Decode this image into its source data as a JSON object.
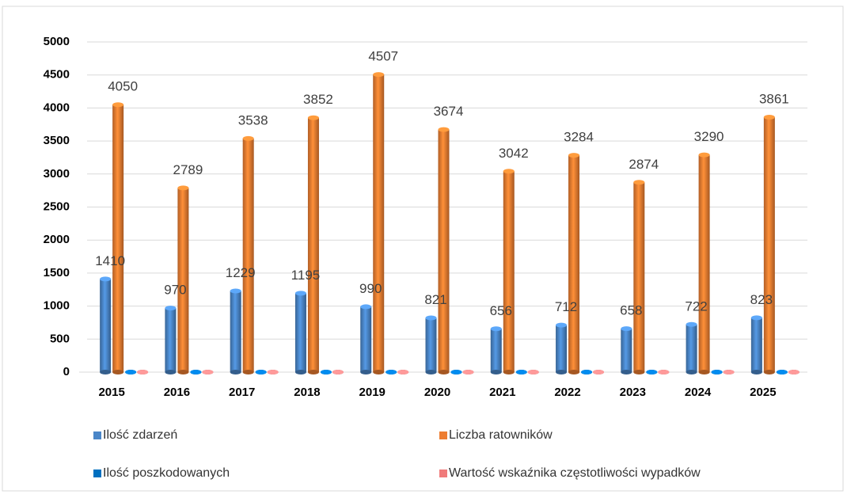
{
  "chart_data": {
    "type": "bar",
    "categories": [
      "2015",
      "2016",
      "2017",
      "2018",
      "2019",
      "2020",
      "2021",
      "2022",
      "2023",
      "2024",
      "2025"
    ],
    "series": [
      {
        "name": "Ilość zdarzeń",
        "color": "#4a86c8",
        "values": [
          1410,
          970,
          1229,
          1195,
          990,
          821,
          656,
          712,
          658,
          722,
          823
        ]
      },
      {
        "name": "Liczba ratowników",
        "color": "#ed7d31",
        "values": [
          4050,
          2789,
          3538,
          3852,
          4507,
          3674,
          3042,
          3284,
          2874,
          3290,
          3861
        ]
      },
      {
        "name": "Ilość poszkodowanych",
        "color": "#0070c0",
        "values": [
          0,
          0,
          0,
          0,
          0,
          0,
          0,
          0,
          0,
          0,
          0
        ]
      },
      {
        "name": "Wartość wskaźnika częstotliwości wypadków",
        "color": "#f07b7b",
        "values": [
          0,
          0,
          0,
          0,
          0,
          0,
          0,
          0,
          0,
          0,
          0
        ]
      }
    ],
    "ylim": [
      0,
      5000
    ],
    "yticks": [
      0,
      500,
      1000,
      1500,
      2000,
      2500,
      3000,
      3500,
      4000,
      4500,
      5000
    ],
    "grid": true,
    "value_labels_series": [
      0,
      1
    ]
  }
}
